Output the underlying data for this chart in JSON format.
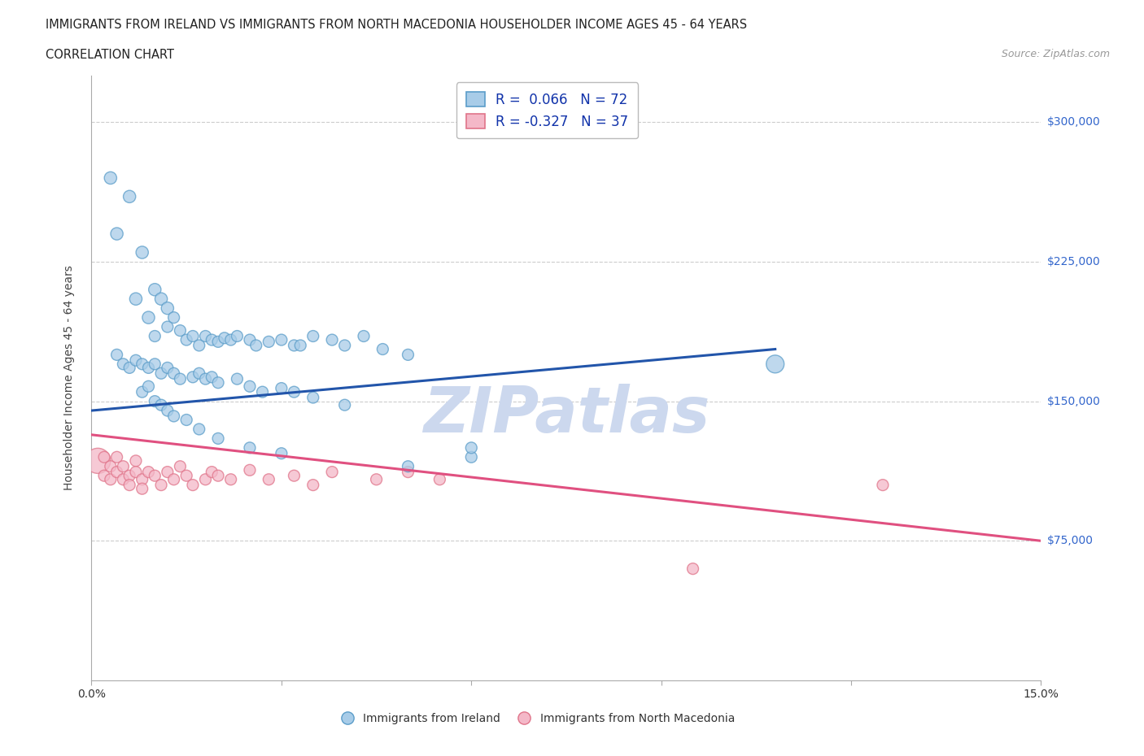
{
  "title_line1": "IMMIGRANTS FROM IRELAND VS IMMIGRANTS FROM NORTH MACEDONIA HOUSEHOLDER INCOME AGES 45 - 64 YEARS",
  "title_line2": "CORRELATION CHART",
  "source_text": "Source: ZipAtlas.com",
  "ylabel": "Householder Income Ages 45 - 64 years",
  "xlim": [
    0.0,
    0.15
  ],
  "ylim": [
    0,
    325000
  ],
  "yticks": [
    75000,
    150000,
    225000,
    300000
  ],
  "ytick_labels": [
    "$75,000",
    "$150,000",
    "$225,000",
    "$300,000"
  ],
  "xticks": [
    0.0,
    0.03,
    0.06,
    0.09,
    0.12,
    0.15
  ],
  "xtick_labels": [
    "0.0%",
    "",
    "",
    "",
    "",
    "15.0%"
  ],
  "ireland_color": "#a8cce8",
  "ireland_edge": "#5b9dc9",
  "macedonia_color": "#f4b8c8",
  "macedonia_edge": "#e0748a",
  "ireland_R": 0.066,
  "ireland_N": 72,
  "macedonia_R": -0.327,
  "macedonia_N": 37,
  "ireland_line_color": "#2255aa",
  "macedonia_line_color": "#e05080",
  "watermark_color": "#ccd8ee",
  "ireland_line_y0": 145000,
  "ireland_line_y1": 178000,
  "ireland_line_x1": 0.108,
  "macedonia_line_y0": 132000,
  "macedonia_line_y1": 75000,
  "macedonia_line_x1": 0.15,
  "ireland_scatter_x": [
    0.003,
    0.006,
    0.004,
    0.008,
    0.007,
    0.01,
    0.009,
    0.011,
    0.012,
    0.01,
    0.012,
    0.013,
    0.014,
    0.015,
    0.016,
    0.017,
    0.018,
    0.019,
    0.02,
    0.021,
    0.022,
    0.023,
    0.025,
    0.026,
    0.028,
    0.03,
    0.032,
    0.033,
    0.035,
    0.038,
    0.04,
    0.043,
    0.046,
    0.05,
    0.004,
    0.005,
    0.006,
    0.007,
    0.008,
    0.009,
    0.01,
    0.011,
    0.012,
    0.013,
    0.014,
    0.016,
    0.017,
    0.018,
    0.019,
    0.02,
    0.023,
    0.025,
    0.027,
    0.03,
    0.032,
    0.035,
    0.04,
    0.008,
    0.009,
    0.01,
    0.011,
    0.012,
    0.013,
    0.015,
    0.017,
    0.02,
    0.025,
    0.03,
    0.05,
    0.06,
    0.06,
    0.108
  ],
  "ireland_scatter_y": [
    270000,
    260000,
    240000,
    230000,
    205000,
    210000,
    195000,
    205000,
    200000,
    185000,
    190000,
    195000,
    188000,
    183000,
    185000,
    180000,
    185000,
    183000,
    182000,
    184000,
    183000,
    185000,
    183000,
    180000,
    182000,
    183000,
    180000,
    180000,
    185000,
    183000,
    180000,
    185000,
    178000,
    175000,
    175000,
    170000,
    168000,
    172000,
    170000,
    168000,
    170000,
    165000,
    168000,
    165000,
    162000,
    163000,
    165000,
    162000,
    163000,
    160000,
    162000,
    158000,
    155000,
    157000,
    155000,
    152000,
    148000,
    155000,
    158000,
    150000,
    148000,
    145000,
    142000,
    140000,
    135000,
    130000,
    125000,
    122000,
    115000,
    120000,
    125000,
    170000
  ],
  "ireland_scatter_sizes": [
    120,
    120,
    120,
    120,
    120,
    120,
    120,
    120,
    120,
    100,
    100,
    100,
    100,
    100,
    100,
    100,
    100,
    100,
    100,
    100,
    100,
    100,
    100,
    100,
    100,
    100,
    100,
    100,
    100,
    100,
    100,
    100,
    100,
    100,
    100,
    100,
    100,
    100,
    100,
    100,
    100,
    100,
    100,
    100,
    100,
    100,
    100,
    100,
    100,
    100,
    100,
    100,
    100,
    100,
    100,
    100,
    100,
    100,
    100,
    100,
    100,
    100,
    100,
    100,
    100,
    100,
    100,
    100,
    100,
    100,
    100,
    250
  ],
  "macedonia_scatter_x": [
    0.001,
    0.002,
    0.002,
    0.003,
    0.003,
    0.004,
    0.004,
    0.005,
    0.005,
    0.006,
    0.006,
    0.007,
    0.007,
    0.008,
    0.008,
    0.009,
    0.01,
    0.011,
    0.012,
    0.013,
    0.014,
    0.015,
    0.016,
    0.018,
    0.019,
    0.02,
    0.022,
    0.025,
    0.028,
    0.032,
    0.035,
    0.038,
    0.045,
    0.05,
    0.055,
    0.095,
    0.125
  ],
  "macedonia_scatter_y": [
    118000,
    120000,
    110000,
    115000,
    108000,
    120000,
    112000,
    115000,
    108000,
    110000,
    105000,
    118000,
    112000,
    108000,
    103000,
    112000,
    110000,
    105000,
    112000,
    108000,
    115000,
    110000,
    105000,
    108000,
    112000,
    110000,
    108000,
    113000,
    108000,
    110000,
    105000,
    112000,
    108000,
    112000,
    108000,
    60000,
    105000
  ],
  "macedonia_scatter_sizes": [
    500,
    100,
    100,
    100,
    100,
    100,
    100,
    100,
    100,
    100,
    100,
    100,
    100,
    100,
    100,
    100,
    100,
    100,
    100,
    100,
    100,
    100,
    100,
    100,
    100,
    100,
    100,
    100,
    100,
    100,
    100,
    100,
    100,
    100,
    100,
    100,
    100
  ]
}
